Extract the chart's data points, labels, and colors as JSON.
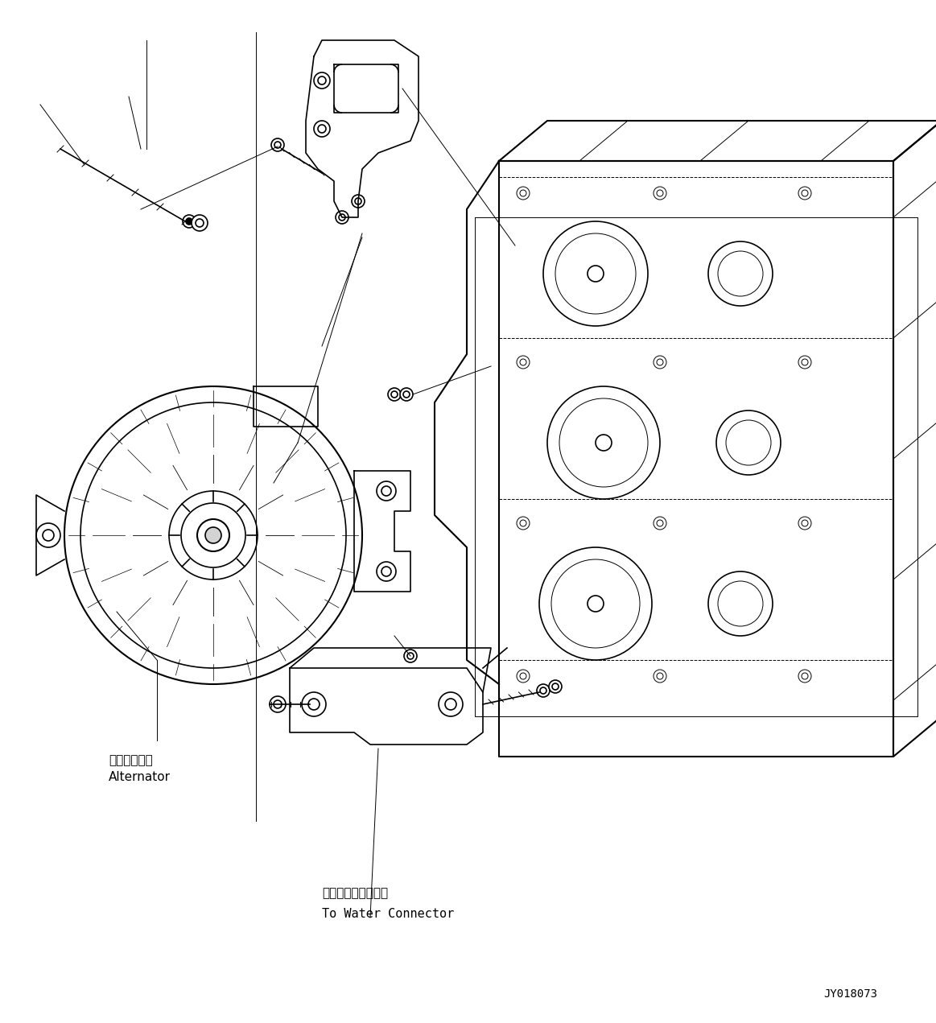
{
  "background_color": "#ffffff",
  "line_color": "#000000",
  "fig_width": 11.63,
  "fig_height": 12.71,
  "dpi": 100,
  "label_alternator_jp": "オルタネータ",
  "label_alternator_en": "Alternator",
  "label_water_jp": "ウォータコネクタヘ",
  "label_water_en": "To Water Connector",
  "label_code": "JY018073",
  "font_size_labels": 11,
  "font_size_code": 10
}
